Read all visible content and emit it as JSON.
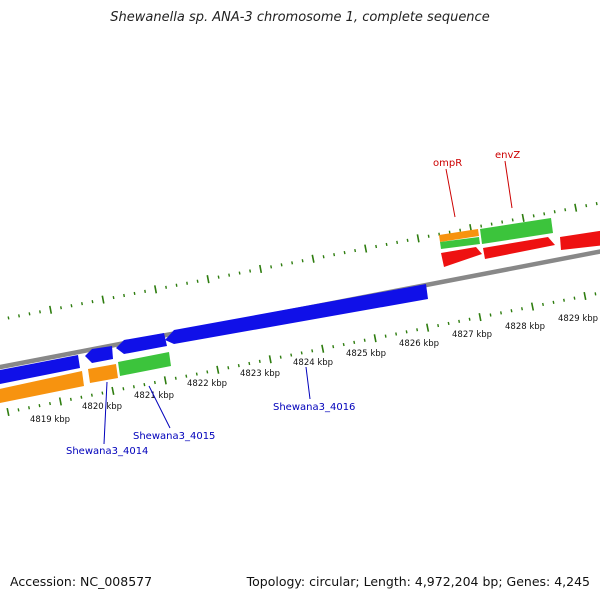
{
  "title": "Shewanella sp. ANA-3 chromosome 1, complete sequence",
  "footer": {
    "accession": "Accession: NC_008577",
    "summary": "Topology: circular; Length: 4,972,204 bp; Genes: 4,245"
  },
  "map": {
    "colors": {
      "tick": "#2e7d0f",
      "backbone": "#888888",
      "blue": "#1010e8",
      "orange": "#f7930f",
      "green": "#3cc43c",
      "red": "#ee1111",
      "label_blue": "#0000bb",
      "label_red": "#cc0000"
    },
    "scale_labels": [
      "4819 kbp",
      "4820 kbp",
      "4821 kbp",
      "4822 kbp",
      "4823 kbp",
      "4824 kbp",
      "4825 kbp",
      "4826 kbp",
      "4827 kbp",
      "4828 kbp",
      "4829 kbp"
    ],
    "gene_labels": [
      {
        "name": "Shewana3_4014",
        "color": "blue"
      },
      {
        "name": "Shewana3_4015",
        "color": "blue"
      },
      {
        "name": "Shewana3_4016",
        "color": "blue"
      },
      {
        "name": "ompR",
        "color": "red"
      },
      {
        "name": "envZ",
        "color": "red"
      }
    ]
  }
}
